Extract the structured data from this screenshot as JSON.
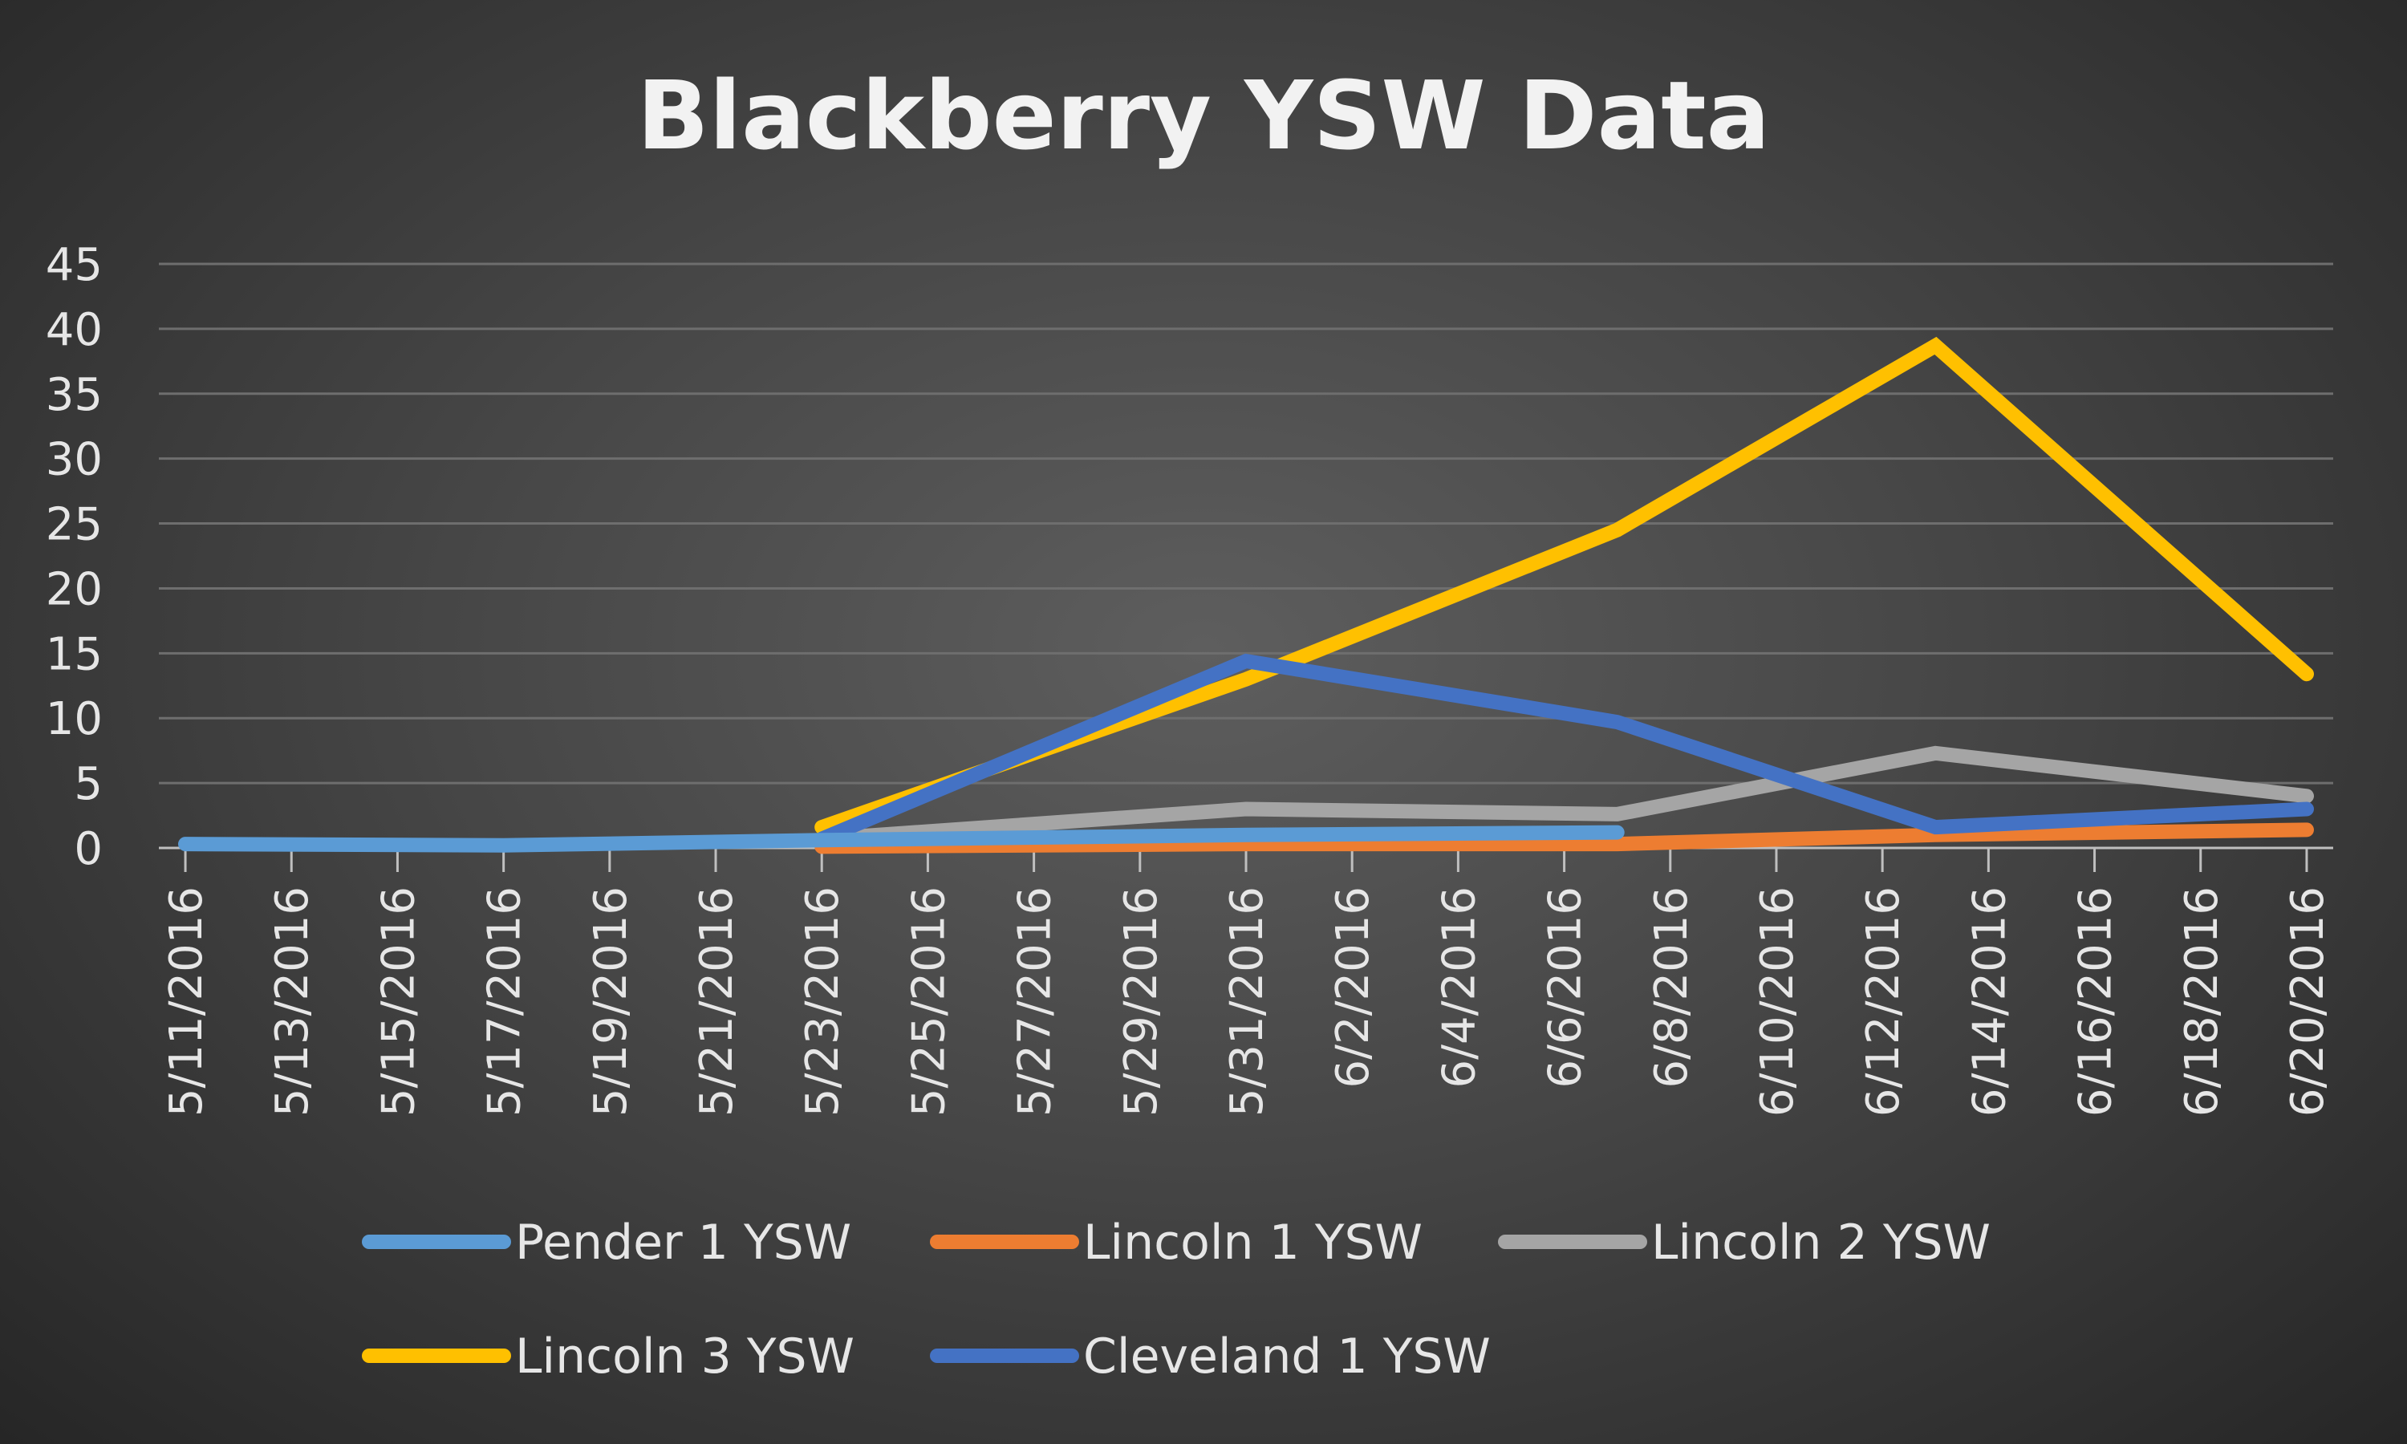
{
  "chart_data": {
    "type": "line",
    "title": "Blackberry YSW Data",
    "xlabel": "",
    "ylabel": "",
    "x_tick_labels": [
      "5/11/2016",
      "5/13/2016",
      "5/15/2016",
      "5/17/2016",
      "5/19/2016",
      "5/21/2016",
      "5/23/2016",
      "5/25/2016",
      "5/27/2016",
      "5/29/2016",
      "5/31/2016",
      "6/2/2016",
      "6/4/2016",
      "6/6/2016",
      "6/8/2016",
      "6/10/2016",
      "6/12/2016",
      "6/14/2016",
      "6/16/2016",
      "6/18/2016",
      "6/20/2016"
    ],
    "x_range": [
      "5/11/2016",
      "6/20/2016"
    ],
    "y_ticks": [
      "0",
      "5",
      "10",
      "15",
      "20",
      "25",
      "30",
      "35",
      "40",
      "45"
    ],
    "ylim": [
      0,
      45
    ],
    "grid": "horizontal",
    "legend_position": "bottom",
    "series": [
      {
        "name": "Pender 1 YSW",
        "color": "#5b9bd5",
        "points": [
          {
            "x": "5/11/2016",
            "y": 0.3
          },
          {
            "x": "5/17/2016",
            "y": 0.2
          },
          {
            "x": "5/23/2016",
            "y": 0.6
          },
          {
            "x": "5/31/2016",
            "y": 1.0
          },
          {
            "x": "6/7/2016",
            "y": 1.2
          }
        ]
      },
      {
        "name": "Lincoln 1 YSW",
        "color": "#ed7d31",
        "points": [
          {
            "x": "5/23/2016",
            "y": 0.1
          },
          {
            "x": "5/31/2016",
            "y": 0.3
          },
          {
            "x": "6/7/2016",
            "y": 0.3
          },
          {
            "x": "6/13/2016",
            "y": 1.0
          },
          {
            "x": "6/20/2016",
            "y": 1.4
          }
        ]
      },
      {
        "name": "Lincoln 2 YSW",
        "color": "#a5a5a5",
        "points": [
          {
            "x": "5/23/2016",
            "y": 0.7
          },
          {
            "x": "5/31/2016",
            "y": 3.0
          },
          {
            "x": "6/7/2016",
            "y": 2.6
          },
          {
            "x": "6/13/2016",
            "y": 7.3
          },
          {
            "x": "6/20/2016",
            "y": 4.0
          }
        ]
      },
      {
        "name": "Lincoln 3 YSW",
        "color": "#ffc000",
        "points": [
          {
            "x": "5/23/2016",
            "y": 1.6
          },
          {
            "x": "5/31/2016",
            "y": 13.0
          },
          {
            "x": "6/7/2016",
            "y": 24.5
          },
          {
            "x": "6/13/2016",
            "y": 38.7
          },
          {
            "x": "6/20/2016",
            "y": 13.4
          }
        ]
      },
      {
        "name": "Cleveland 1 YSW",
        "color": "#4472c4",
        "points": [
          {
            "x": "5/23/2016",
            "y": 0.7
          },
          {
            "x": "5/31/2016",
            "y": 14.4
          },
          {
            "x": "6/7/2016",
            "y": 9.7
          },
          {
            "x": "6/13/2016",
            "y": 1.6
          },
          {
            "x": "6/20/2016",
            "y": 3.0
          }
        ]
      }
    ]
  }
}
